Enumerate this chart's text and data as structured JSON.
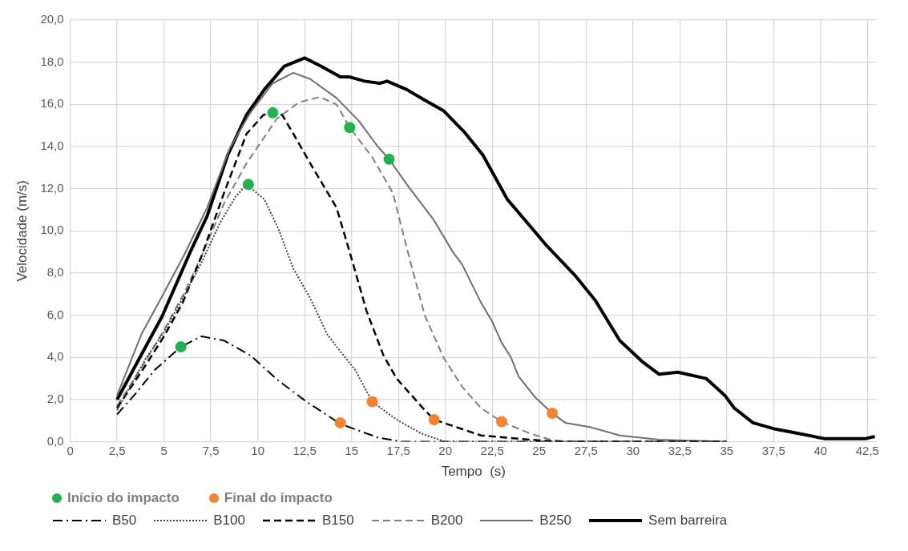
{
  "chart_data": {
    "type": "line",
    "xlabel": "Tempo  (s)",
    "ylabel": "Velocidade (m/s)",
    "xlim": [
      0,
      43
    ],
    "xticks": [
      0,
      {
        "value": 2.5,
        "label": "2,5"
      },
      5,
      {
        "value": 7.5,
        "label": "7,5"
      },
      10,
      {
        "value": 12.5,
        "label": "12,5"
      },
      15,
      {
        "value": 17.5,
        "label": "17,5"
      },
      20,
      {
        "value": 22.5,
        "label": "22,5"
      },
      25,
      {
        "value": 27.5,
        "label": "27,5"
      },
      30,
      {
        "value": 32.5,
        "label": "32,5"
      },
      35,
      {
        "value": 37.5,
        "label": "37,5"
      },
      40,
      {
        "value": 42.5,
        "label": "42,5"
      }
    ],
    "ylim": [
      0,
      20
    ],
    "yticks": [
      {
        "value": 0,
        "label": "0,0"
      },
      {
        "value": 2,
        "label": "2,0"
      },
      {
        "value": 4,
        "label": "4,0"
      },
      {
        "value": 6,
        "label": "6,0"
      },
      {
        "value": 8,
        "label": "8,0"
      },
      {
        "value": 10,
        "label": "10,0"
      },
      {
        "value": 12,
        "label": "12,0"
      },
      {
        "value": 14,
        "label": "14,0"
      },
      {
        "value": 16,
        "label": "16,0"
      },
      {
        "value": 18,
        "label": "18,0"
      },
      {
        "value": 20,
        "label": "20,0"
      }
    ],
    "grid": true,
    "legend": "bottom",
    "series": [
      {
        "name": "Início do impacto",
        "type": "scatter",
        "marker": "circle",
        "color": "#22b14c",
        "x": [
          5.9,
          9.5,
          10.8,
          14.9,
          17.0
        ],
        "values": [
          4.5,
          12.2,
          15.6,
          14.9,
          13.4
        ]
      },
      {
        "name": "Final do impacto",
        "type": "scatter",
        "marker": "circle",
        "color": "#f58233",
        "x": [
          14.4,
          16.1,
          19.4,
          23.0,
          25.7
        ],
        "values": [
          0.9,
          1.9,
          1.05,
          0.95,
          1.35
        ]
      },
      {
        "name": "B50",
        "line_style": "dashdot",
        "marker": "none",
        "color": "#000000",
        "x": [
          2.5,
          3.5,
          4.5,
          5.9,
          7.0,
          8.2,
          9.6,
          11.1,
          12.6,
          14.4,
          16.4,
          17.7,
          22.5,
          30,
          35
        ],
        "values": [
          1.3,
          2.3,
          3.4,
          4.5,
          5.0,
          4.8,
          4.1,
          2.9,
          1.9,
          0.85,
          0.2,
          0.0,
          0.0,
          0.0,
          0.0
        ]
      },
      {
        "name": "B100",
        "line_style": "dotted",
        "marker": "none",
        "color": "#404040",
        "x": [
          2.5,
          4,
          5,
          6,
          7,
          8,
          8.8,
          9.4,
          10.35,
          11.1,
          11.9,
          12.8,
          13.7,
          14.3,
          15.2,
          16.1,
          17.4,
          18.7,
          20,
          25,
          30
        ],
        "values": [
          1.5,
          3.9,
          5.2,
          6.8,
          8.5,
          10.4,
          11.6,
          12.2,
          11.5,
          10.1,
          8.2,
          6.8,
          5.1,
          4.4,
          3.4,
          1.9,
          1.05,
          0.4,
          0.0,
          0.0,
          0.0
        ]
      },
      {
        "name": "B150",
        "line_style": "dashed",
        "marker": "none",
        "color": "#000000",
        "x": [
          2.5,
          4,
          5,
          6,
          7,
          8.2,
          9.4,
          10.3,
          10.8,
          11.3,
          11.9,
          12.8,
          14.2,
          14.9,
          15.8,
          16.7,
          17.4,
          18.9,
          19.4,
          21.9,
          24.5,
          26,
          30,
          35
        ],
        "values": [
          1.6,
          3.6,
          5.0,
          6.6,
          8.8,
          11.8,
          14.6,
          15.5,
          15.6,
          15.5,
          14.6,
          13.2,
          11.1,
          9.0,
          6.2,
          4.1,
          3.0,
          1.5,
          1.05,
          0.3,
          0.1,
          0.0,
          0.0,
          0.0
        ]
      },
      {
        "name": "B200",
        "line_style": "dashed",
        "marker": "none",
        "color": "#7f7f7f",
        "x": [
          2.5,
          4,
          5,
          6.1,
          7,
          8.2,
          9.4,
          11,
          12.2,
          13.3,
          14.2,
          14.9,
          16.1,
          17.2,
          18,
          18.9,
          19.9,
          20.9,
          21.9,
          23.0,
          24.5,
          25.6,
          26.5,
          30,
          35
        ],
        "values": [
          1.7,
          3.8,
          5.3,
          7.1,
          8.8,
          11.3,
          13.2,
          15.3,
          16.1,
          16.35,
          16.0,
          14.9,
          13.5,
          11.8,
          9.0,
          6.0,
          4.0,
          2.6,
          1.6,
          0.95,
          0.4,
          0.1,
          0.0,
          0.0,
          0.0
        ]
      },
      {
        "name": "B250",
        "line_style": "solid",
        "marker": "none",
        "color": "#6e6e6e",
        "x": [
          2.5,
          3.8,
          4.9,
          6.1,
          7.3,
          8.5,
          9.6,
          10.8,
          11.9,
          12.8,
          14.2,
          15.4,
          16.4,
          17.0,
          17.95,
          19.4,
          20.4,
          20.9,
          21.9,
          22.5,
          23.0,
          23.5,
          23.9,
          24.8,
          25.7,
          26.4,
          27.7,
          29.3,
          31.4,
          35.0
        ],
        "values": [
          2.2,
          5.1,
          6.9,
          8.9,
          11.1,
          13.9,
          15.6,
          17.0,
          17.5,
          17.2,
          16.3,
          15.2,
          14.0,
          13.4,
          12.2,
          10.5,
          9.0,
          8.4,
          6.6,
          5.7,
          4.7,
          4.0,
          3.1,
          2.1,
          1.35,
          0.9,
          0.7,
          0.3,
          0.1,
          0.0
        ]
      },
      {
        "name": "Sem barreira",
        "line_style": "solid",
        "marker": "none",
        "color": "#000000",
        "x": [
          2.5,
          4.9,
          6.4,
          7.3,
          8.4,
          9.4,
          10.35,
          11.4,
          12.5,
          13.4,
          14.4,
          14.9,
          15.7,
          16.5,
          16.9,
          17.95,
          18.9,
          19.9,
          21.0,
          22.0,
          23.3,
          24.5,
          25.4,
          26.9,
          28.0,
          29.3,
          30.5,
          31.4,
          32.4,
          33.9,
          34.9,
          35.4,
          36.4,
          37.6,
          38.5,
          40.2,
          42.4,
          42.9
        ],
        "values": [
          2.0,
          5.95,
          9.0,
          10.7,
          13.6,
          15.5,
          16.7,
          17.8,
          18.2,
          17.8,
          17.3,
          17.3,
          17.1,
          17.0,
          17.1,
          16.7,
          16.2,
          15.7,
          14.7,
          13.6,
          11.5,
          10.25,
          9.3,
          7.9,
          6.7,
          4.8,
          3.8,
          3.2,
          3.3,
          3.0,
          2.2,
          1.6,
          0.9,
          0.6,
          0.45,
          0.15,
          0.15,
          0.25
        ]
      }
    ]
  }
}
